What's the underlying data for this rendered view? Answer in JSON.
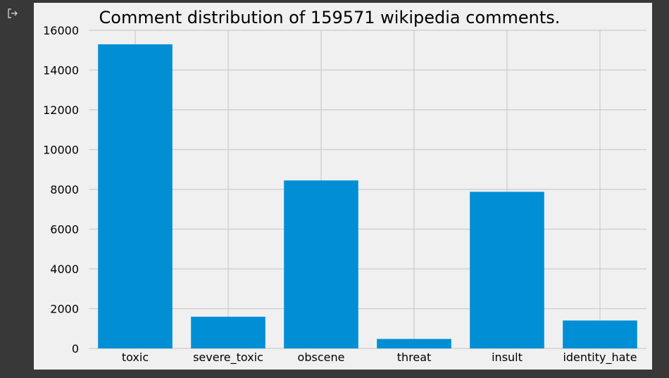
{
  "output": {
    "icon": "output-redirect-icon"
  },
  "chart_data": {
    "type": "bar",
    "title": "Comment distribution of 159571 wikipedia comments.",
    "xlabel": "",
    "ylabel": "",
    "categories": [
      "toxic",
      "severe_toxic",
      "obscene",
      "threat",
      "insult",
      "identity_hate"
    ],
    "values": [
      15294,
      1595,
      8449,
      478,
      7877,
      1405
    ],
    "ylim": [
      0,
      16000
    ],
    "yticks": [
      0,
      2000,
      4000,
      6000,
      8000,
      10000,
      12000,
      14000,
      16000
    ],
    "grid": true,
    "legend": "none",
    "colors": {
      "bar": "#008fd5",
      "background": "#f0f0f0",
      "grid": "#cbcbcb",
      "text": "#000000"
    }
  }
}
